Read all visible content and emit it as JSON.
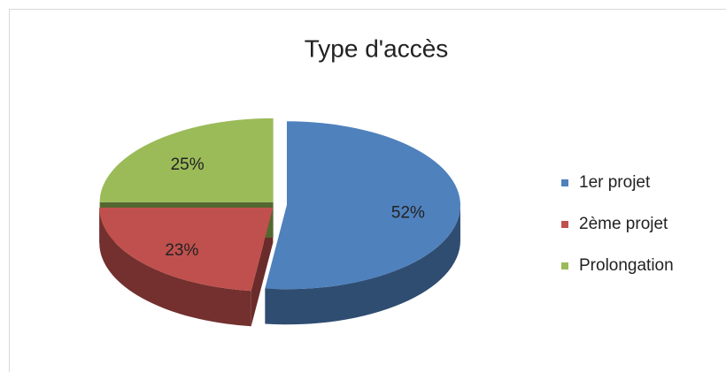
{
  "chart_data": {
    "type": "pie",
    "title": "Type d'accès",
    "categories": [
      "1er projet",
      "2ème projet",
      "Prolongation"
    ],
    "values": [
      52,
      23,
      25
    ],
    "value_labels": [
      "52%",
      "23%",
      "25%"
    ],
    "colors": [
      "#4f81bd",
      "#c0504d",
      "#9bbb59"
    ],
    "legend": "right"
  }
}
